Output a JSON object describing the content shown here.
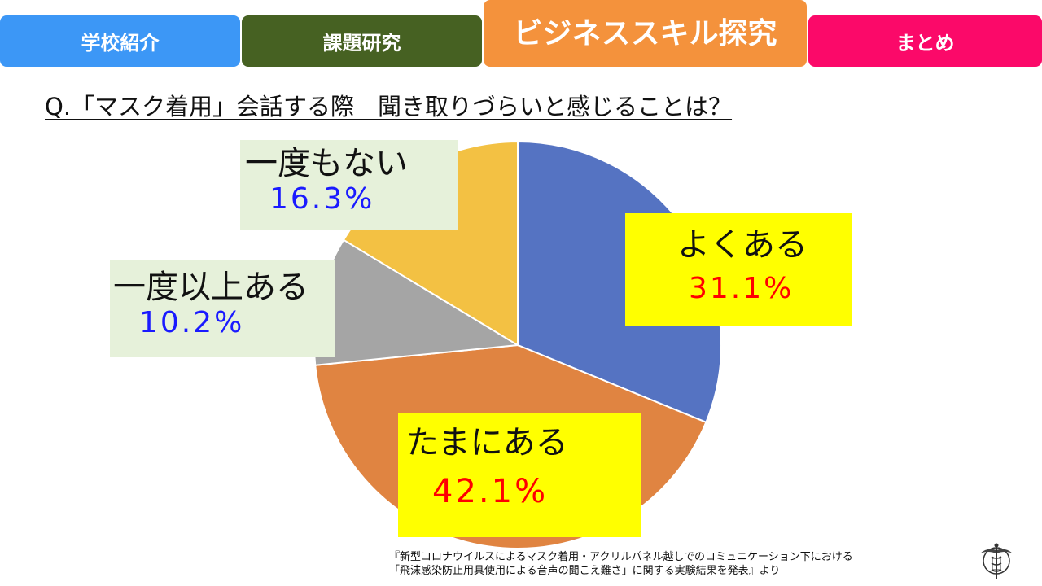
{
  "nav": {
    "tabs": [
      {
        "label": "学校紹介",
        "color": "#3c97f6"
      },
      {
        "label": "課題研究",
        "color": "#466122"
      },
      {
        "label": "ビジネススキル探究",
        "color": "#f4923c",
        "active": true
      },
      {
        "label": "まとめ",
        "color": "#fb0969"
      }
    ]
  },
  "question": "Q.「マスク着用」会話する際　聞き取りづらいと感じることは？",
  "chart_data": {
    "type": "pie",
    "title": "Q.「マスク着用」会話する際　聞き取りづらいと感じることは？",
    "start": "12 o'clock",
    "direction": "clockwise",
    "slices": [
      {
        "label": "よくある",
        "value": 31.1,
        "display": "31.1%",
        "color": "#5573c2"
      },
      {
        "label": "たまにある",
        "value": 42.1,
        "display": "42.1%",
        "color": "#e08441"
      },
      {
        "label": "一度以上ある",
        "value": 10.2,
        "display": "10.2%",
        "color": "#a5a5a5"
      },
      {
        "label": "一度もない",
        "value": 16.3,
        "display": "16.3%",
        "color": "#f3c143"
      }
    ]
  },
  "source": {
    "line1": "『新型コロナウイルスによるマスク着用・アクリルパネル越しでのコミュニケーション下における",
    "line2": "「飛沫感染防止用具使用による音声の聞こえ難さ」に関する実験結果を発表』より"
  },
  "logo": {
    "icon": "school-emblem-icon"
  }
}
